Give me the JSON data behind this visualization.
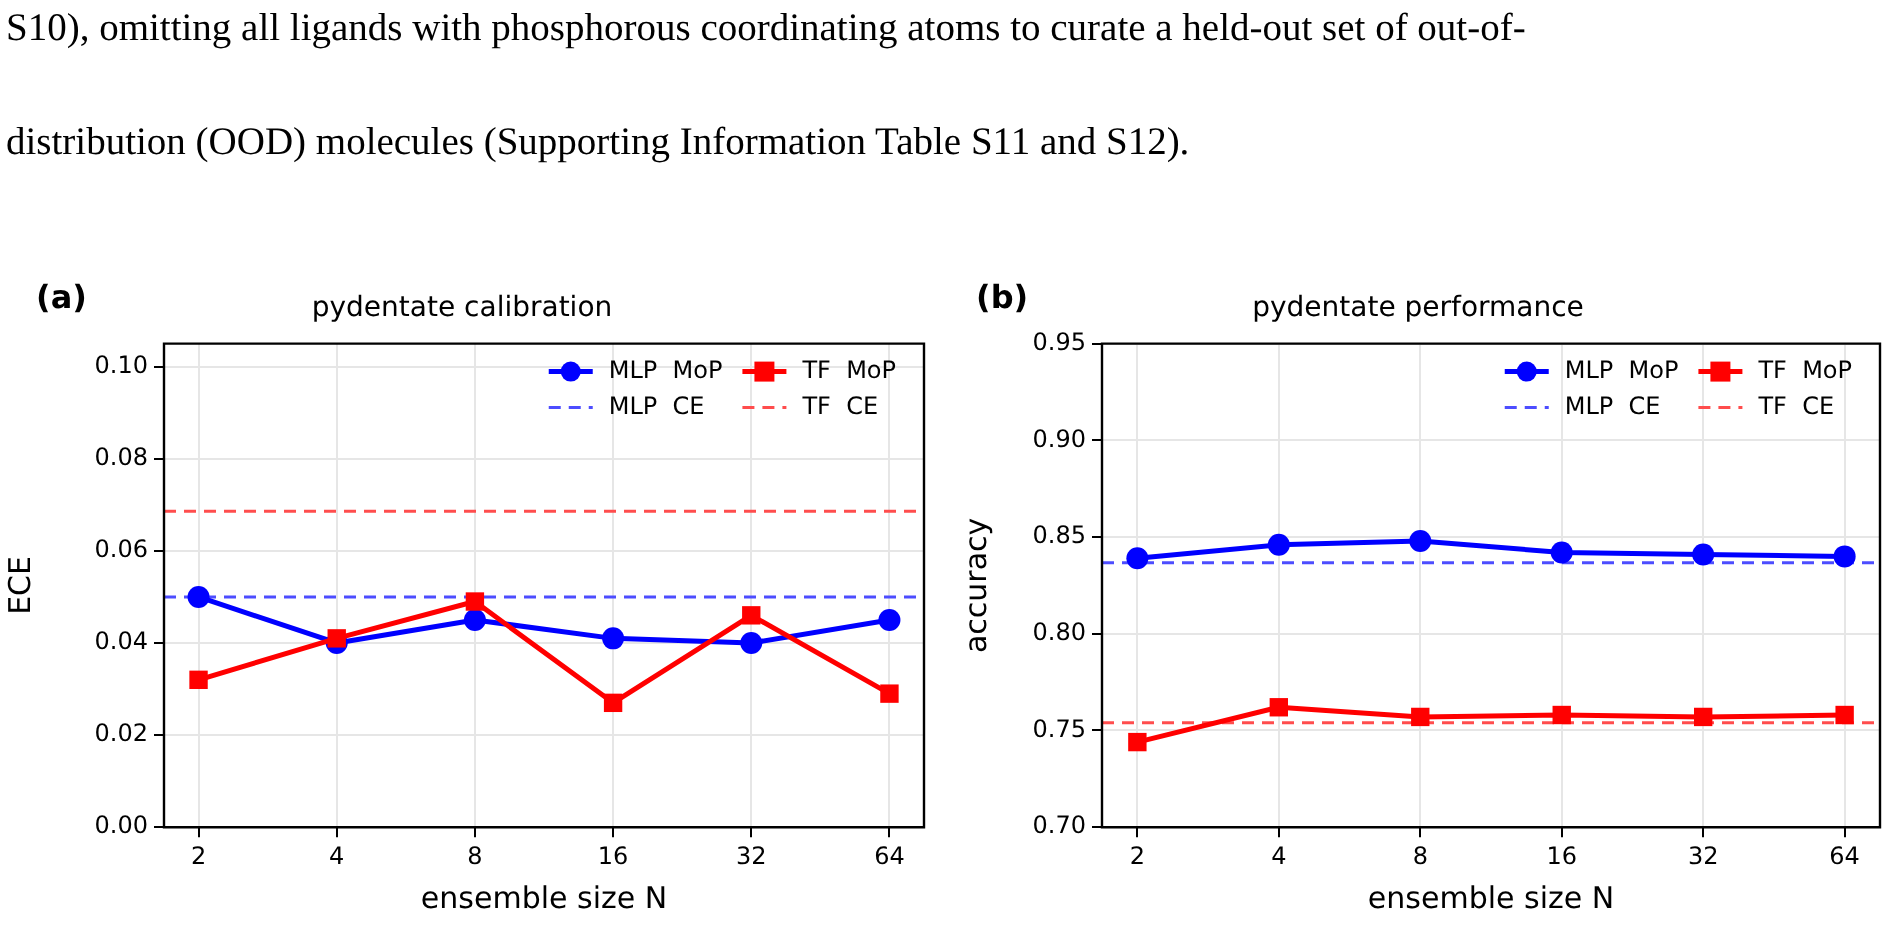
{
  "chart_data": [
    {
      "type": "line",
      "title": "pydentate calibration",
      "xlabel": "ensemble size N",
      "ylabel": "ECE",
      "annotations": [
        "S10), omitting all ligands with phosphorous coordinating atoms to curate a held-out set of out-of-",
        "distribution (OOD) molecules (Supporting Information Table S11 and S12).",
        "(a)"
      ],
      "categories": [
        "2",
        "4",
        "8",
        "16",
        "32",
        "64"
      ],
      "series": [
        {
          "name": "MLP  MoP",
          "color": "#0000ff",
          "marker": "circle",
          "values": [
            0.05,
            0.04,
            0.045,
            0.041,
            0.04,
            0.045
          ]
        },
        {
          "name": "TF  MoP",
          "color": "#ff0000",
          "marker": "square",
          "values": [
            0.032,
            0.041,
            0.049,
            0.027,
            0.046,
            0.029
          ]
        }
      ],
      "ref_lines": [
        {
          "axis": "y",
          "value": 0.05,
          "label": "MLP  CE",
          "color": "#4d4dff",
          "line_style": "dashed"
        },
        {
          "axis": "y",
          "value": 0.0686,
          "label": "TF  CE",
          "color": "#ff4d4d",
          "line_style": "dashed"
        }
      ],
      "ylim": [
        0,
        0.105
      ],
      "yticks": [
        {
          "value": 0,
          "label": "0.00"
        },
        {
          "value": 0.02,
          "label": "0.02"
        },
        {
          "value": 0.04,
          "label": "0.04"
        },
        {
          "value": 0.06,
          "label": "0.06"
        },
        {
          "value": 0.08,
          "label": "0.08"
        },
        {
          "value": 0.1,
          "label": "0.10"
        }
      ],
      "grid": true,
      "legend": "top right",
      "line_style": "solid"
    },
    {
      "type": "line",
      "title": "pydentate performance",
      "xlabel": "ensemble size N",
      "ylabel": "accuracy",
      "annotations": [
        "(b)"
      ],
      "categories": [
        "2",
        "4",
        "8",
        "16",
        "32",
        "64"
      ],
      "series": [
        {
          "name": "MLP  MoP",
          "color": "#0000ff",
          "marker": "circle",
          "values": [
            0.839,
            0.846,
            0.848,
            0.842,
            0.841,
            0.84
          ]
        },
        {
          "name": "TF  MoP",
          "color": "#ff0000",
          "marker": "square",
          "values": [
            0.744,
            0.762,
            0.757,
            0.758,
            0.757,
            0.758
          ]
        }
      ],
      "ref_lines": [
        {
          "axis": "y",
          "value": 0.8367,
          "label": "MLP  CE",
          "color": "#4d4dff",
          "line_style": "dashed"
        },
        {
          "axis": "y",
          "value": 0.754,
          "label": "TF  CE",
          "color": "#ff4d4d",
          "line_style": "dashed"
        }
      ],
      "ylim": [
        0.7,
        0.95
      ],
      "yticks": [
        {
          "value": 0.7,
          "label": "0.70"
        },
        {
          "value": 0.75,
          "label": "0.75"
        },
        {
          "value": 0.8,
          "label": "0.80"
        },
        {
          "value": 0.85,
          "label": "0.85"
        },
        {
          "value": 0.9,
          "label": "0.90"
        },
        {
          "value": 0.95,
          "label": "0.95"
        }
      ],
      "grid": true,
      "legend": "top right",
      "line_style": "solid"
    }
  ]
}
